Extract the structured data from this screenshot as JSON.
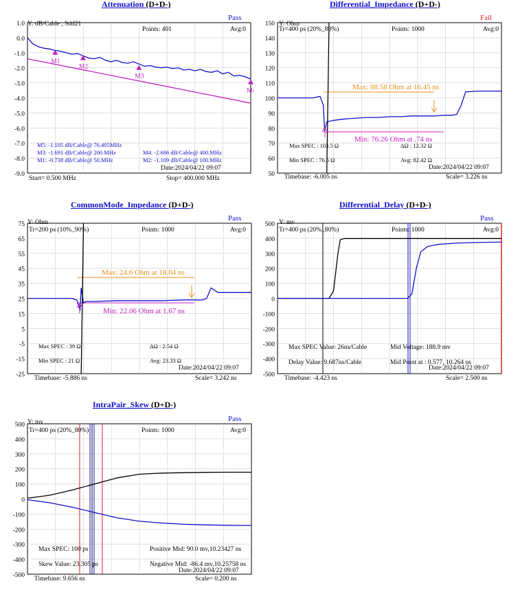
{
  "panels": [
    {
      "id": "attenuation",
      "title": "Attenuation",
      "title_suffix": "(D+D-)",
      "status": "Pass",
      "status_color": "#1010c8",
      "yunit": "Y: dB/Cable , Sdd21",
      "points": "Points: 401",
      "avg": "Avg:0",
      "date": "Date:2024/04/22 09:07",
      "bottom_left": "Start= 0.500 MHz",
      "bottom_right": "Stop= 400.000 MHz",
      "info_lines": [
        {
          "text": "M5: -1.105 dB/Cable@ 76.405MHz",
          "color": "#d07010"
        },
        {
          "text": "M3: -1.691 dB/Cable@ 200.MHz",
          "color": "#d07010"
        },
        {
          "text": "M4: -2.686 dB/Cable@ 400.MHz",
          "color": "#d07010"
        },
        {
          "text": "M1: -0.738 dB/Cable@ 50.MHz",
          "color": "#d07010"
        },
        {
          "text": "M2: -1.109 dB/Cable@ 100.MHz",
          "color": "#d07010"
        }
      ],
      "markers": [
        "M1",
        "M2",
        "M3",
        "M4"
      ],
      "chart_data": {
        "type": "line",
        "ylim": [
          -9.0,
          1.0
        ],
        "yticks": [
          "1.0",
          "0.0",
          "-1.0",
          "-2.0",
          "-3.0",
          "-4.0",
          "-5.0",
          "-6.0",
          "-7.0",
          "-8.0",
          "-9.0"
        ],
        "xlim": [
          0.5,
          400
        ],
        "series": [
          {
            "color": "#1010c8",
            "x": [
              0.5,
              10,
              20,
              30,
              40,
              50,
              60,
              70,
              80,
              90,
              100,
              110,
              120,
              130,
              140,
              150,
              160,
              170,
              180,
              190,
              200,
              210,
              220,
              230,
              240,
              250,
              260,
              270,
              280,
              290,
              300,
              310,
              320,
              330,
              340,
              350,
              360,
              370,
              380,
              390,
              400
            ],
            "y": [
              0,
              -0.4,
              -0.6,
              -0.7,
              -0.75,
              -0.85,
              -0.9,
              -1.0,
              -1.1,
              -1.05,
              -1.2,
              -1.35,
              -1.4,
              -1.3,
              -1.5,
              -1.6,
              -1.5,
              -1.65,
              -1.7,
              -1.6,
              -1.75,
              -1.9,
              -1.85,
              -1.95,
              -2.0,
              -1.95,
              -2.05,
              -2.0,
              -2.15,
              -2.1,
              -2.2,
              -2.1,
              -2.25,
              -2.3,
              -2.2,
              -2.4,
              -2.3,
              -2.55,
              -2.5,
              -2.6,
              -2.75
            ]
          },
          {
            "color": "#c020c0",
            "x": [
              0.5,
              400
            ],
            "y": [
              -1.4,
              -4.35
            ]
          }
        ],
        "marker_points": [
          {
            "x": 50,
            "y": -1.0
          },
          {
            "x": 100,
            "y": -1.35
          },
          {
            "x": 200,
            "y": -2.0
          },
          {
            "x": 400,
            "y": -2.95
          }
        ]
      }
    },
    {
      "id": "diff-impedance",
      "title": "Differential_Impedance",
      "title_suffix": "(D+D-)",
      "status": "Fail",
      "status_color": "#e02020",
      "yunit": "Y: Ohm",
      "tr": "Tr=400  ps (20%_80%)",
      "points": "Points: 1000",
      "avg": "Avg:0",
      "date": "Date:2024/04/22 09:07",
      "bottom_left": "Timebase: -6.005  ns",
      "bottom_right": "Scale=    3.226 ns",
      "max_label": "Max: 88.58  Ohm at 16.45  ns",
      "min_label": "Min: 76.26  Ohm at .74  ns",
      "spec_lines": [
        {
          "text": "Max SPEC : 103.5 Ω"
        },
        {
          "text": "ΔΩ : 12.32 Ω"
        },
        {
          "text": "Min SPEC : 76.5  Ω"
        },
        {
          "text": "Avg: 82.42 Ω"
        }
      ],
      "chart_data": {
        "type": "line",
        "ylim": [
          50,
          150
        ],
        "yticks": [
          "150",
          "140",
          "130",
          "120",
          "110",
          "100",
          "90",
          "80",
          "70",
          "60",
          "50"
        ],
        "series": [
          {
            "color": "#1010c8",
            "x": [
              0,
              0.16,
              0.19,
              0.205,
              0.21,
              0.22,
              0.25,
              0.3,
              0.35,
              0.4,
              0.45,
              0.5,
              0.55,
              0.6,
              0.65,
              0.7,
              0.75,
              0.78,
              0.8,
              0.82,
              0.84,
              0.9,
              1.0
            ],
            "y": [
              100,
              100,
              101,
              95,
              78,
              84,
              85,
              86,
              86.5,
              87,
              87,
              87.5,
              87.5,
              88,
              88,
              88,
              88.5,
              88.5,
              89,
              95,
              104,
              104.5,
              104.5
            ]
          },
          {
            "color": "#000000",
            "x": [
              0.22,
              0.225,
              0.23
            ],
            "y": [
              50,
              100,
              150
            ]
          }
        ]
      }
    },
    {
      "id": "common-impedance",
      "title": "CommonMode_Impedance",
      "title_suffix": "(D+D-)",
      "status": "Pass",
      "status_color": "#1010c8",
      "yunit": "Y: Ohm",
      "tr": "Tr=200  ps (10%_90%)",
      "points": "Points: 1000",
      "avg": "Avg:0",
      "date": "Date:2024/04/22 09:07",
      "bottom_left": "Timebase: -5.886  ns",
      "bottom_right": "Scale=    3.242 ns",
      "max_label": "Max: 24.6  Ohm at 18.04  ns",
      "min_label": "Min: 22.06  Ohm at 1.67  ns",
      "spec_lines": [
        {
          "text": "Max SPEC : 39 Ω"
        },
        {
          "text": "ΔΩ : 2.54 Ω"
        },
        {
          "text": "Min SPEC : 21  Ω"
        },
        {
          "text": "Avg: 23.33 Ω"
        }
      ],
      "chart_data": {
        "type": "line",
        "ylim": [
          -25,
          75
        ],
        "yticks": [
          "75",
          "65",
          "55",
          "45",
          "35",
          "25",
          "15",
          "5",
          "-5",
          "-15",
          "-25"
        ],
        "series": [
          {
            "color": "#1010c8",
            "x": [
              0,
              0.2,
              0.22,
              0.235,
              0.24,
              0.25,
              0.26,
              0.3,
              0.4,
              0.5,
              0.6,
              0.7,
              0.78,
              0.8,
              0.82,
              0.85,
              0.9,
              1.0
            ],
            "y": [
              25,
              25,
              24,
              17,
              32,
              22,
              23,
              23,
              23.5,
              23.5,
              23.5,
              24,
              24,
              25,
              32,
              29,
              29,
              29
            ]
          },
          {
            "color": "#000000",
            "x": [
              0.24,
              0.245,
              0.25
            ],
            "y": [
              -25,
              25,
              75
            ]
          }
        ]
      }
    },
    {
      "id": "diff-delay",
      "title": "Differential_Delay",
      "title_suffix": "(D+D-)",
      "status": "Pass",
      "status_color": "#1010c8",
      "yunit": "Y: mv",
      "tr": "Tr=400  ps (20%_80%)",
      "points": "Points: 1000",
      "avg": "Avg:0",
      "date": "Date:2024/04/22 09:07",
      "bottom_left": "Timebase: -4.423  ns",
      "bottom_right": "Scale=    2.500 ns",
      "spec_lines": [
        {
          "text": "Max SPEC Value: 26ns/Cable"
        },
        {
          "text": "Mid Voltage: 188.9 mv"
        },
        {
          "text": "Delay Value: 9.687ns/Cable"
        },
        {
          "text": "Mid Point at : 0.577, 10.264 ns"
        }
      ],
      "chart_data": {
        "type": "line",
        "ylim": [
          -500,
          500
        ],
        "yticks": [
          "500",
          "400",
          "300",
          "200",
          "100",
          "0",
          "-100",
          "-200",
          "-300",
          "-400",
          "-500"
        ],
        "series": [
          {
            "color": "#000000",
            "x": [
              0,
              0.23,
              0.25,
              0.27,
              0.28,
              0.29,
              0.3,
              1.0
            ],
            "y": [
              0,
              0,
              50,
              300,
              390,
              395,
              398,
              398
            ]
          },
          {
            "color": "#1010c8",
            "x": [
              0,
              0.58,
              0.6,
              0.62,
              0.64,
              0.67,
              0.72,
              0.8,
              0.9,
              1.0
            ],
            "y": [
              0,
              0,
              30,
              200,
              310,
              345,
              360,
              368,
              372,
              375
            ]
          }
        ]
      }
    },
    {
      "id": "intrapair-skew",
      "title": "IntraPair_Skew",
      "title_suffix": "(D+D-)",
      "status": "Pass",
      "status_color": "#1010c8",
      "yunit": "Y: mv",
      "tr": "Tr=400  ps (20%_80%)",
      "points": "Points: 1000",
      "avg": "Avg:0",
      "date": "Date:2024/04/22 09:07",
      "bottom_left": "Timebase: 9.656  ns",
      "bottom_right": "Scale=    0.200 ns",
      "spec_lines": [
        {
          "text": "Max SPEC: 100 ps"
        },
        {
          "text": "Positive Mid: 90.0 mv,10.23427 ns"
        },
        {
          "text": "Skew Value: 23.305 ps"
        },
        {
          "text": "Negative Mid: -86.4 mv,10.25758 ns"
        }
      ],
      "chart_data": {
        "type": "line",
        "ylim": [
          -500,
          500
        ],
        "yticks": [
          "500",
          "400",
          "300",
          "200",
          "100",
          "0",
          "-100",
          "-200",
          "-300",
          "-400",
          "-500"
        ],
        "series": [
          {
            "color": "#000000",
            "x": [
              0,
              0.1,
              0.2,
              0.3,
              0.4,
              0.5,
              0.6,
              0.7,
              0.8,
              0.9,
              1.0
            ],
            "y": [
              5,
              25,
              60,
              100,
              140,
              165,
              172,
              175,
              177,
              178,
              178
            ]
          },
          {
            "color": "#1010c8",
            "x": [
              0,
              0.1,
              0.2,
              0.3,
              0.4,
              0.5,
              0.6,
              0.7,
              0.8,
              0.9,
              1.0
            ],
            "y": [
              -5,
              -25,
              -55,
              -90,
              -125,
              -148,
              -160,
              -168,
              -172,
              -175,
              -176
            ]
          }
        ]
      }
    }
  ]
}
